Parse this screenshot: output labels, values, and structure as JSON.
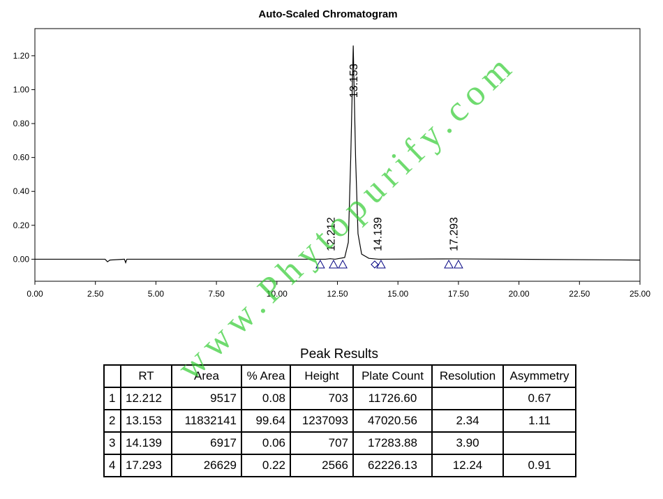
{
  "chart_data": {
    "type": "line",
    "title": "Auto-Scaled Chromatogram",
    "xlim": [
      0,
      25
    ],
    "ylim": [
      -0.13,
      1.36
    ],
    "xticks": [
      {
        "value": 0,
        "label": "0.00"
      },
      {
        "value": 2.5,
        "label": "2.50"
      },
      {
        "value": 5,
        "label": "5.00"
      },
      {
        "value": 7.5,
        "label": "7.50"
      },
      {
        "value": 10,
        "label": "10.00"
      },
      {
        "value": 12.5,
        "label": "12.50"
      },
      {
        "value": 15,
        "label": "15.00"
      },
      {
        "value": 17.5,
        "label": "17.50"
      },
      {
        "value": 20,
        "label": "20.00"
      },
      {
        "value": 22.5,
        "label": "22.50"
      },
      {
        "value": 25,
        "label": "25.00"
      }
    ],
    "yticks": [
      {
        "value": 0,
        "label": "0.00"
      },
      {
        "value": 0.2,
        "label": "0.20"
      },
      {
        "value": 0.4,
        "label": "0.40"
      },
      {
        "value": 0.6,
        "label": "0.60"
      },
      {
        "value": 0.8,
        "label": "0.80"
      },
      {
        "value": 1,
        "label": "1.00"
      },
      {
        "value": 1.2,
        "label": "1.20"
      }
    ],
    "series": [
      {
        "color": "#000000",
        "x": [
          0,
          2.9,
          3.0,
          3.1,
          3.7,
          3.75,
          3.8,
          12.0,
          12.2,
          12.4,
          12.8,
          12.95,
          13.05,
          13.153,
          13.25,
          13.35,
          13.5,
          13.8,
          14.2,
          17.3,
          25
        ],
        "values": [
          0,
          0,
          -0.015,
          -0.005,
          0,
          -0.02,
          0,
          0,
          0.003,
          0,
          0.01,
          0.1,
          0.6,
          1.26,
          0.6,
          0.15,
          0.03,
          0.005,
          0,
          0.002,
          -0.005
        ]
      }
    ],
    "peak_labels": [
      12.212,
      13.153,
      14.139,
      17.293
    ],
    "triangle_marks": [
      11.79,
      12.34,
      12.72,
      14.3,
      17.1,
      17.5
    ],
    "diamond_marks": [
      14.04
    ],
    "marker_color": "#000080"
  },
  "watermark": "www.Phytopurify.com",
  "table": {
    "title": "Peak Results",
    "header": [
      "RT",
      "Area",
      "% Area",
      "Height",
      "Plate Count",
      "Resolution",
      "Asymmetry"
    ],
    "rows": [
      [
        "1",
        "12.212",
        "9517",
        "0.08",
        "703",
        "11726.60",
        null,
        "0.67"
      ],
      [
        "2",
        "13.153",
        "11832141",
        "99.64",
        "1237093",
        "47020.56",
        "2.34",
        "1.11"
      ],
      [
        "3",
        "14.139",
        "6917",
        "0.06",
        "707",
        "17283.88",
        "3.90",
        null
      ],
      [
        "4",
        "17.293",
        "26629",
        "0.22",
        "2566",
        "62226.13",
        "12.24",
        "0.91"
      ]
    ]
  }
}
